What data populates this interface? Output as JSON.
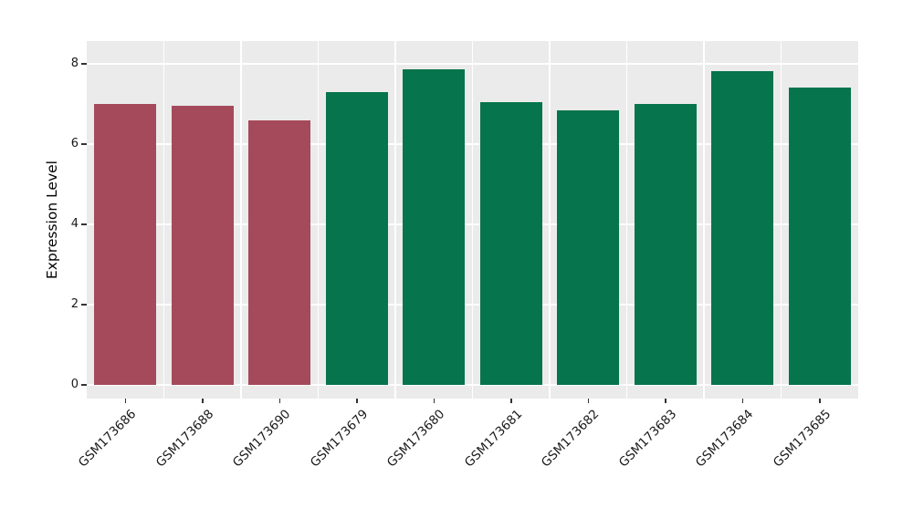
{
  "chart_data": {
    "type": "bar",
    "title": "",
    "xlabel": "",
    "ylabel": "Expression Level",
    "categories": [
      "GSM173686",
      "GSM173688",
      "GSM173690",
      "GSM173679",
      "GSM173680",
      "GSM173681",
      "GSM173682",
      "GSM173683",
      "GSM173684",
      "GSM173685"
    ],
    "values": [
      7.0,
      6.95,
      6.6,
      7.3,
      7.87,
      7.05,
      6.85,
      7.0,
      7.82,
      7.42
    ],
    "bar_colors": [
      "#A54A5A",
      "#A54A5A",
      "#A54A5A",
      "#06744C",
      "#06744C",
      "#06744C",
      "#06744C",
      "#06744C",
      "#06744C",
      "#06744C"
    ],
    "ylim": [
      0,
      8
    ],
    "yticks": [
      0,
      2,
      4,
      6,
      8
    ],
    "grid": true,
    "legend": false,
    "panel_background": "#EBEBEB",
    "grid_color": "#FFFFFF",
    "figure_background": "#FFFFFF"
  }
}
